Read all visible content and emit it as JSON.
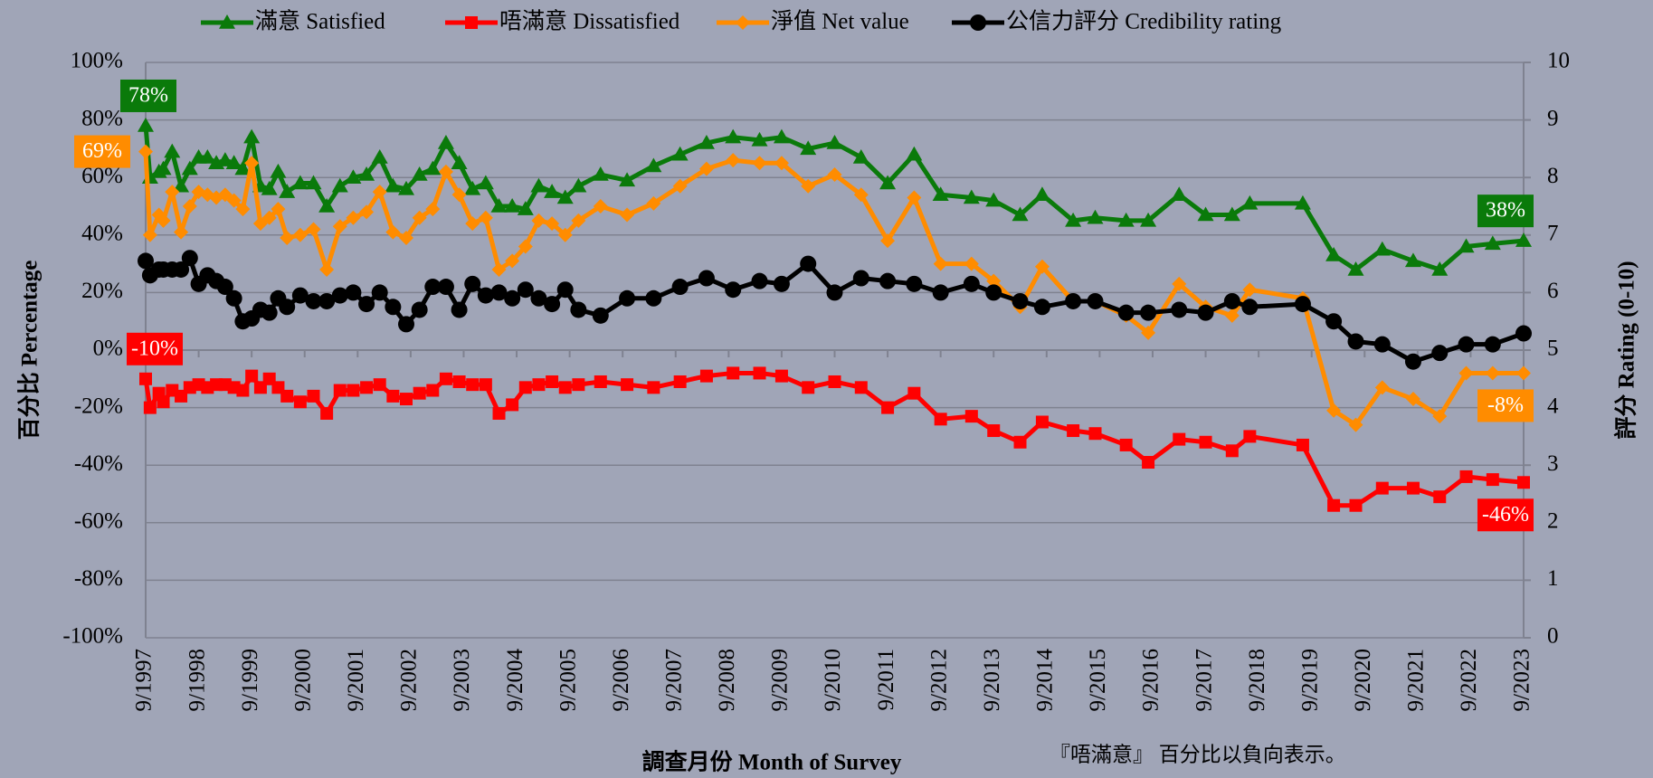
{
  "chart_data": {
    "type": "line",
    "x_label": "調查月份 Month of Survey",
    "y_label": "百分比 Percentage",
    "y2_label": "評分 Rating (0-10)",
    "note": "『唔滿意』 百分比以負向表示。",
    "x": [
      "9/1997",
      "10/1997",
      "12/1997",
      "1/1998",
      "3/1998",
      "5/1998",
      "7/1998",
      "9/1998",
      "11/1998",
      "1/1999",
      "3/1999",
      "5/1999",
      "7/1999",
      "9/1999",
      "11/1999",
      "1/2000",
      "3/2000",
      "5/2000",
      "8/2000",
      "11/2000",
      "2/2001",
      "5/2001",
      "8/2001",
      "11/2001",
      "2/2002",
      "5/2002",
      "8/2002",
      "11/2002",
      "2/2003",
      "5/2003",
      "8/2003",
      "11/2003",
      "2/2004",
      "5/2004",
      "8/2004",
      "11/2004",
      "2/2005",
      "5/2005",
      "8/2005",
      "11/2005",
      "4/2006",
      "10/2006",
      "4/2007",
      "10/2007",
      "4/2008",
      "10/2008",
      "4/2009",
      "9/2009",
      "3/2010",
      "9/2010",
      "3/2011",
      "9/2011",
      "3/2012",
      "9/2012",
      "4/2013",
      "9/2013",
      "3/2014",
      "8/2014",
      "3/2015",
      "8/2015",
      "3/2016",
      "8/2016",
      "3/2017",
      "9/2017",
      "3/2018",
      "7/2018",
      "7/2019",
      "2/2020",
      "7/2020",
      "1/2021",
      "8/2021",
      "2/2022",
      "8/2022",
      "2/2023",
      "9/2023"
    ],
    "xlim": [
      "9/1997",
      "9/2023"
    ],
    "xticks": [
      "9/1997",
      "9/1998",
      "9/1999",
      "9/2000",
      "9/2001",
      "9/2002",
      "9/2003",
      "9/2004",
      "9/2005",
      "9/2006",
      "9/2007",
      "9/2008",
      "9/2009",
      "9/2010",
      "9/2011",
      "9/2012",
      "9/2013",
      "9/2014",
      "9/2015",
      "9/2016",
      "9/2017",
      "9/2018",
      "9/2019",
      "9/2020",
      "9/2021",
      "9/2022",
      "9/2023"
    ],
    "ylim": [
      -100,
      100
    ],
    "yticks": [
      {
        "value": -100,
        "label": "-100%"
      },
      {
        "value": -80,
        "label": "-80%"
      },
      {
        "value": -60,
        "label": "-60%"
      },
      {
        "value": -40,
        "label": "-40%"
      },
      {
        "value": -20,
        "label": "-20%"
      },
      {
        "value": 0,
        "label": "0%"
      },
      {
        "value": 20,
        "label": "20%"
      },
      {
        "value": 40,
        "label": "40%"
      },
      {
        "value": 60,
        "label": "60%"
      },
      {
        "value": 80,
        "label": "80%"
      },
      {
        "value": 100,
        "label": "100%"
      }
    ],
    "y2lim": [
      0,
      10
    ],
    "y2ticks": [
      0,
      1,
      2,
      3,
      4,
      5,
      6,
      7,
      8,
      9,
      10
    ],
    "grid": true,
    "series": [
      {
        "name": "滿意 Satisfied",
        "color": "#0a7a0a",
        "marker": "triangle",
        "values": [
          78,
          60,
          62,
          63,
          69,
          57,
          63,
          67,
          67,
          65,
          66,
          65,
          63,
          74,
          57,
          56,
          62,
          55,
          58,
          58,
          50,
          57,
          60,
          61,
          67,
          57,
          56,
          61,
          63,
          72,
          65,
          56,
          58,
          50,
          50,
          49,
          57,
          55,
          53,
          57,
          61,
          59,
          64,
          68,
          72,
          74,
          73,
          74,
          70,
          72,
          67,
          58,
          68,
          54,
          53,
          52,
          47,
          54,
          45,
          46,
          45,
          45,
          54,
          47,
          47,
          51,
          51,
          33,
          28,
          35,
          31,
          28,
          36,
          37,
          38
        ],
        "value_labels": [
          "78%",
          null,
          null,
          null,
          null,
          null,
          null,
          null,
          null,
          null,
          null,
          null,
          null,
          null,
          null,
          null,
          null,
          null,
          null,
          null,
          null,
          null,
          null,
          null,
          null,
          null,
          null,
          null,
          null,
          null,
          null,
          null,
          null,
          null,
          null,
          null,
          null,
          null,
          null,
          null,
          null,
          null,
          null,
          null,
          null,
          null,
          null,
          null,
          null,
          null,
          null,
          null,
          null,
          null,
          null,
          null,
          null,
          null,
          null,
          null,
          null,
          null,
          null,
          null,
          null,
          null,
          null,
          null,
          null,
          null,
          null,
          null,
          null,
          null,
          "38%"
        ]
      },
      {
        "name": "唔滿意 Dissatisfied",
        "color": "#ff0000",
        "marker": "square",
        "values": [
          -10,
          -20,
          -15,
          -18,
          -14,
          -16,
          -13,
          -12,
          -13,
          -12,
          -12,
          -13,
          -14,
          -9,
          -13,
          -10,
          -13,
          -16,
          -18,
          -16,
          -22,
          -14,
          -14,
          -13,
          -12,
          -16,
          -17,
          -15,
          -14,
          -10,
          -11,
          -12,
          -12,
          -22,
          -19,
          -13,
          -12,
          -11,
          -13,
          -12,
          -11,
          -12,
          -13,
          -11,
          -9,
          -8,
          -8,
          -9,
          -13,
          -11,
          -13,
          -20,
          -15,
          -24,
          -23,
          -28,
          -32,
          -25,
          -28,
          -29,
          -33,
          -39,
          -31,
          -32,
          -35,
          -30,
          -33,
          -54,
          -54,
          -48,
          -48,
          -51,
          -44,
          -45,
          -46
        ],
        "value_labels": [
          "-10%",
          null,
          null,
          null,
          null,
          null,
          null,
          null,
          null,
          null,
          null,
          null,
          null,
          null,
          null,
          null,
          null,
          null,
          null,
          null,
          null,
          null,
          null,
          null,
          null,
          null,
          null,
          null,
          null,
          null,
          null,
          null,
          null,
          null,
          null,
          null,
          null,
          null,
          null,
          null,
          null,
          null,
          null,
          null,
          null,
          null,
          null,
          null,
          null,
          null,
          null,
          null,
          null,
          null,
          null,
          null,
          null,
          null,
          null,
          null,
          null,
          null,
          null,
          null,
          null,
          null,
          null,
          null,
          null,
          null,
          null,
          null,
          null,
          null,
          "-46%"
        ]
      },
      {
        "name": "淨值 Net value",
        "color": "#ff8c00",
        "marker": "diamond",
        "values": [
          69,
          40,
          47,
          45,
          55,
          41,
          50,
          55,
          54,
          53,
          54,
          52,
          49,
          65,
          44,
          46,
          49,
          39,
          40,
          42,
          28,
          43,
          46,
          48,
          55,
          41,
          39,
          46,
          49,
          62,
          54,
          44,
          46,
          28,
          31,
          36,
          45,
          44,
          40,
          45,
          50,
          47,
          51,
          57,
          63,
          66,
          65,
          65,
          57,
          61,
          54,
          38,
          53,
          30,
          30,
          24,
          15,
          29,
          17,
          17,
          12,
          6,
          23,
          15,
          12,
          21,
          18,
          -21,
          -26,
          -13,
          -17,
          -23,
          -8,
          -8,
          -8
        ],
        "value_labels": [
          "69%",
          null,
          null,
          null,
          null,
          null,
          null,
          null,
          null,
          null,
          null,
          null,
          null,
          null,
          null,
          null,
          null,
          null,
          null,
          null,
          null,
          null,
          null,
          null,
          null,
          null,
          null,
          null,
          null,
          null,
          null,
          null,
          null,
          null,
          null,
          null,
          null,
          null,
          null,
          null,
          null,
          null,
          null,
          null,
          null,
          null,
          null,
          null,
          null,
          null,
          null,
          null,
          null,
          null,
          null,
          null,
          null,
          null,
          null,
          null,
          null,
          null,
          null,
          null,
          null,
          null,
          null,
          null,
          null,
          null,
          null,
          null,
          null,
          null,
          "-8%"
        ]
      },
      {
        "name": "公信力評分 Credibility rating",
        "color": "#000000",
        "marker": "circle",
        "axis": "y2",
        "values": [
          6.55,
          6.3,
          6.4,
          6.4,
          6.4,
          6.4,
          6.6,
          6.15,
          6.3,
          6.2,
          6.1,
          5.9,
          5.5,
          5.55,
          5.7,
          5.65,
          5.9,
          5.75,
          5.95,
          5.85,
          5.85,
          5.95,
          6.0,
          5.8,
          6.0,
          5.75,
          5.45,
          5.7,
          6.1,
          6.1,
          5.7,
          6.15,
          5.95,
          6.0,
          5.9,
          6.05,
          5.9,
          5.8,
          6.05,
          5.7,
          5.6,
          5.9,
          5.9,
          6.1,
          6.25,
          6.05,
          6.2,
          6.15,
          6.5,
          6.0,
          6.25,
          6.2,
          6.15,
          6.0,
          6.15,
          6.0,
          5.85,
          5.75,
          5.85,
          5.85,
          5.65,
          5.65,
          5.7,
          5.65,
          5.85,
          5.75,
          5.8,
          5.5,
          5.15,
          5.1,
          4.8,
          4.95,
          5.1,
          5.1,
          5.29
        ]
      }
    ]
  }
}
